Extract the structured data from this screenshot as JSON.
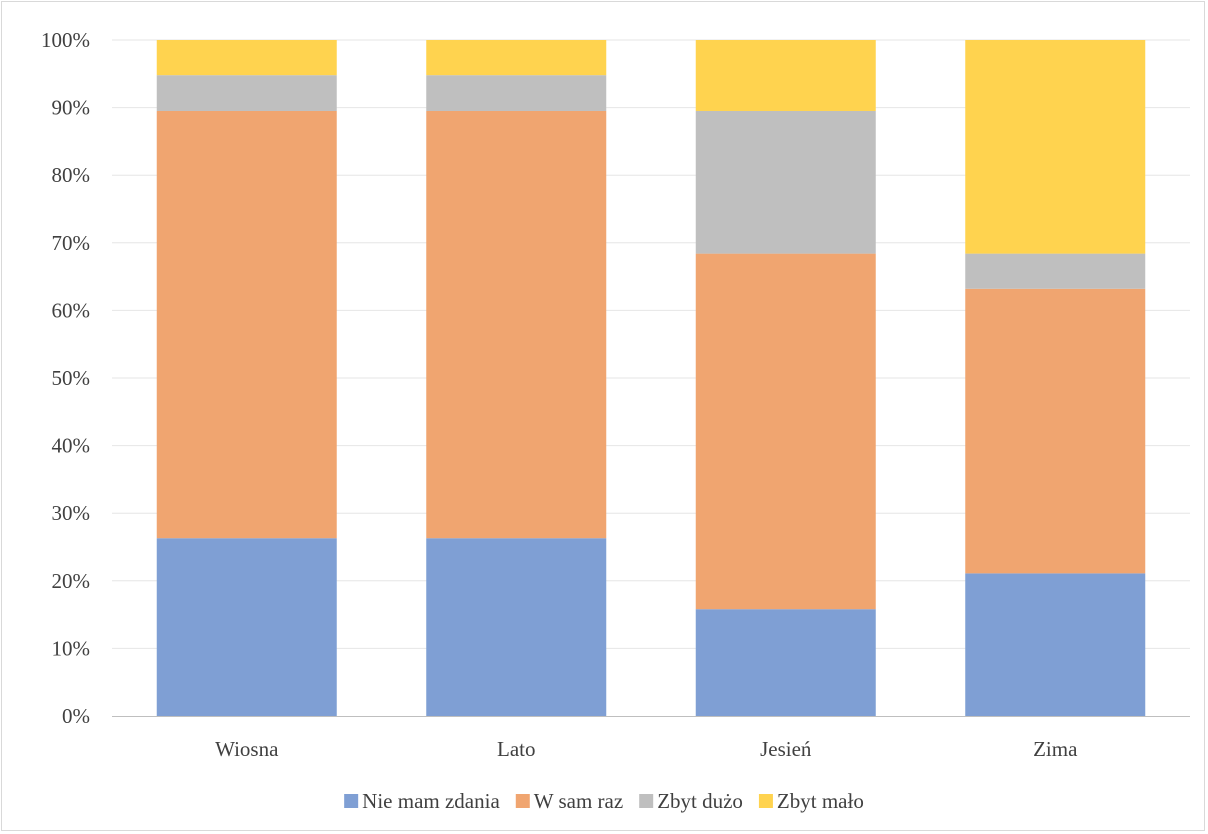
{
  "chart_data": {
    "type": "bar",
    "stacked": true,
    "percent_stacked": true,
    "categories": [
      "Wiosna",
      "Lato",
      "Jesień",
      "Zima"
    ],
    "series": [
      {
        "name": "Nie mam zdania",
        "color": "#7f9fd4",
        "values": [
          26.3,
          26.3,
          15.8,
          21.1
        ]
      },
      {
        "name": "W sam raz",
        "color": "#f0a570",
        "values": [
          63.2,
          63.2,
          52.6,
          42.1
        ]
      },
      {
        "name": "Zbyt dużo",
        "color": "#bfbfbf",
        "values": [
          5.3,
          5.3,
          21.1,
          5.2
        ]
      },
      {
        "name": "Zbyt mało",
        "color": "#ffd34f",
        "values": [
          5.2,
          5.2,
          10.5,
          31.6
        ]
      }
    ],
    "ylim": [
      0,
      100
    ],
    "yticks": [
      "0%",
      "10%",
      "20%",
      "30%",
      "40%",
      "50%",
      "60%",
      "70%",
      "80%",
      "90%",
      "100%"
    ],
    "grid": true,
    "legend_position": "bottom"
  }
}
